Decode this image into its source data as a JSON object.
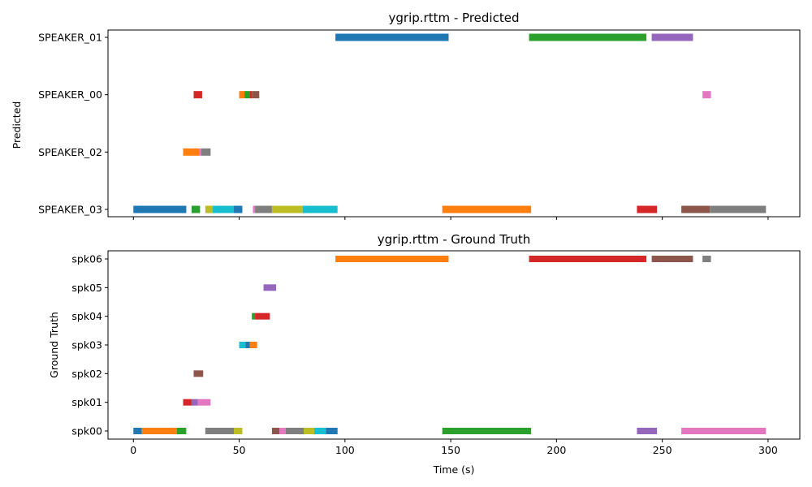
{
  "chart_data": [
    {
      "type": "timeline",
      "title": "ygrip.rttm - Predicted",
      "xlabel": "",
      "ylabel": "Predicted",
      "xlim": [
        -12,
        315
      ],
      "xticks": [
        0,
        50,
        100,
        150,
        200,
        250,
        300
      ],
      "show_xtick_labels": false,
      "categories": [
        "SPEAKER_03",
        "SPEAKER_02",
        "SPEAKER_00",
        "SPEAKER_01"
      ],
      "segments": [
        {
          "row": "SPEAKER_03",
          "start": 0,
          "end": 25,
          "color": "#1f77b4"
        },
        {
          "row": "SPEAKER_03",
          "start": 27.5,
          "end": 31.5,
          "color": "#2ca02c"
        },
        {
          "row": "SPEAKER_03",
          "start": 34,
          "end": 37.5,
          "color": "#bcbd22"
        },
        {
          "row": "SPEAKER_03",
          "start": 37.5,
          "end": 47.5,
          "color": "#17becf"
        },
        {
          "row": "SPEAKER_03",
          "start": 47.5,
          "end": 51.5,
          "color": "#1f77b4"
        },
        {
          "row": "SPEAKER_03",
          "start": 56.5,
          "end": 57.5,
          "color": "#e377c2"
        },
        {
          "row": "SPEAKER_03",
          "start": 57.5,
          "end": 65.5,
          "color": "#7f7f7f"
        },
        {
          "row": "SPEAKER_03",
          "start": 65.5,
          "end": 80,
          "color": "#bcbd22"
        },
        {
          "row": "SPEAKER_03",
          "start": 80,
          "end": 96.5,
          "color": "#17becf"
        },
        {
          "row": "SPEAKER_03",
          "start": 146,
          "end": 188,
          "color": "#ff7f0e"
        },
        {
          "row": "SPEAKER_03",
          "start": 238,
          "end": 247.5,
          "color": "#d62728"
        },
        {
          "row": "SPEAKER_03",
          "start": 259,
          "end": 272.5,
          "color": "#8c564b"
        },
        {
          "row": "SPEAKER_03",
          "start": 272.5,
          "end": 299,
          "color": "#7f7f7f"
        },
        {
          "row": "SPEAKER_02",
          "start": 23.5,
          "end": 31,
          "color": "#ff7f0e"
        },
        {
          "row": "SPEAKER_02",
          "start": 31,
          "end": 32,
          "color": "#e377c2"
        },
        {
          "row": "SPEAKER_02",
          "start": 32,
          "end": 36.5,
          "color": "#7f7f7f"
        },
        {
          "row": "SPEAKER_00",
          "start": 28.5,
          "end": 32.5,
          "color": "#d62728"
        },
        {
          "row": "SPEAKER_00",
          "start": 50,
          "end": 52.5,
          "color": "#ff7f0e"
        },
        {
          "row": "SPEAKER_00",
          "start": 52.5,
          "end": 55,
          "color": "#2ca02c"
        },
        {
          "row": "SPEAKER_00",
          "start": 55,
          "end": 56,
          "color": "#d62728"
        },
        {
          "row": "SPEAKER_00",
          "start": 56,
          "end": 59.5,
          "color": "#8c564b"
        },
        {
          "row": "SPEAKER_00",
          "start": 269,
          "end": 273,
          "color": "#e377c2"
        },
        {
          "row": "SPEAKER_01",
          "start": 95.5,
          "end": 149,
          "color": "#1f77b4"
        },
        {
          "row": "SPEAKER_01",
          "start": 187,
          "end": 242.5,
          "color": "#2ca02c"
        },
        {
          "row": "SPEAKER_01",
          "start": 245,
          "end": 264.5,
          "color": "#9467bd"
        }
      ]
    },
    {
      "type": "timeline",
      "title": "ygrip.rttm - Ground Truth",
      "xlabel": "Time (s)",
      "ylabel": "Ground Truth",
      "xlim": [
        -12,
        315
      ],
      "xticks": [
        0,
        50,
        100,
        150,
        200,
        250,
        300
      ],
      "show_xtick_labels": true,
      "categories": [
        "spk00",
        "spk01",
        "spk02",
        "spk03",
        "spk04",
        "spk05",
        "spk06"
      ],
      "segments": [
        {
          "row": "spk00",
          "start": 0,
          "end": 4,
          "color": "#1f77b4"
        },
        {
          "row": "spk00",
          "start": 4,
          "end": 20.5,
          "color": "#ff7f0e"
        },
        {
          "row": "spk00",
          "start": 20.5,
          "end": 25,
          "color": "#2ca02c"
        },
        {
          "row": "spk00",
          "start": 34,
          "end": 47.5,
          "color": "#7f7f7f"
        },
        {
          "row": "spk00",
          "start": 47.5,
          "end": 51.5,
          "color": "#bcbd22"
        },
        {
          "row": "spk00",
          "start": 65.5,
          "end": 69,
          "color": "#8c564b"
        },
        {
          "row": "spk00",
          "start": 69,
          "end": 72,
          "color": "#e377c2"
        },
        {
          "row": "spk00",
          "start": 72,
          "end": 80.5,
          "color": "#7f7f7f"
        },
        {
          "row": "spk00",
          "start": 80.5,
          "end": 85.5,
          "color": "#bcbd22"
        },
        {
          "row": "spk00",
          "start": 85.5,
          "end": 91,
          "color": "#17becf"
        },
        {
          "row": "spk00",
          "start": 91,
          "end": 96.5,
          "color": "#1f77b4"
        },
        {
          "row": "spk00",
          "start": 146,
          "end": 188,
          "color": "#2ca02c"
        },
        {
          "row": "spk00",
          "start": 238,
          "end": 247.5,
          "color": "#9467bd"
        },
        {
          "row": "spk00",
          "start": 259,
          "end": 299,
          "color": "#e377c2"
        },
        {
          "row": "spk01",
          "start": 23.5,
          "end": 27.5,
          "color": "#d62728"
        },
        {
          "row": "spk01",
          "start": 27.5,
          "end": 30.5,
          "color": "#9467bd"
        },
        {
          "row": "spk01",
          "start": 30.5,
          "end": 36.5,
          "color": "#e377c2"
        },
        {
          "row": "spk02",
          "start": 28.5,
          "end": 33,
          "color": "#8c564b"
        },
        {
          "row": "spk03",
          "start": 50,
          "end": 53,
          "color": "#17becf"
        },
        {
          "row": "spk03",
          "start": 53,
          "end": 55,
          "color": "#1f77b4"
        },
        {
          "row": "spk03",
          "start": 55,
          "end": 58.5,
          "color": "#ff7f0e"
        },
        {
          "row": "spk04",
          "start": 56,
          "end": 57.5,
          "color": "#2ca02c"
        },
        {
          "row": "spk04",
          "start": 57.5,
          "end": 64.5,
          "color": "#d62728"
        },
        {
          "row": "spk05",
          "start": 61.5,
          "end": 67.5,
          "color": "#9467bd"
        },
        {
          "row": "spk06",
          "start": 95.5,
          "end": 149,
          "color": "#ff7f0e"
        },
        {
          "row": "spk06",
          "start": 187,
          "end": 242.5,
          "color": "#d62728"
        },
        {
          "row": "spk06",
          "start": 245,
          "end": 264.5,
          "color": "#8c564b"
        },
        {
          "row": "spk06",
          "start": 269,
          "end": 273,
          "color": "#7f7f7f"
        }
      ]
    }
  ]
}
